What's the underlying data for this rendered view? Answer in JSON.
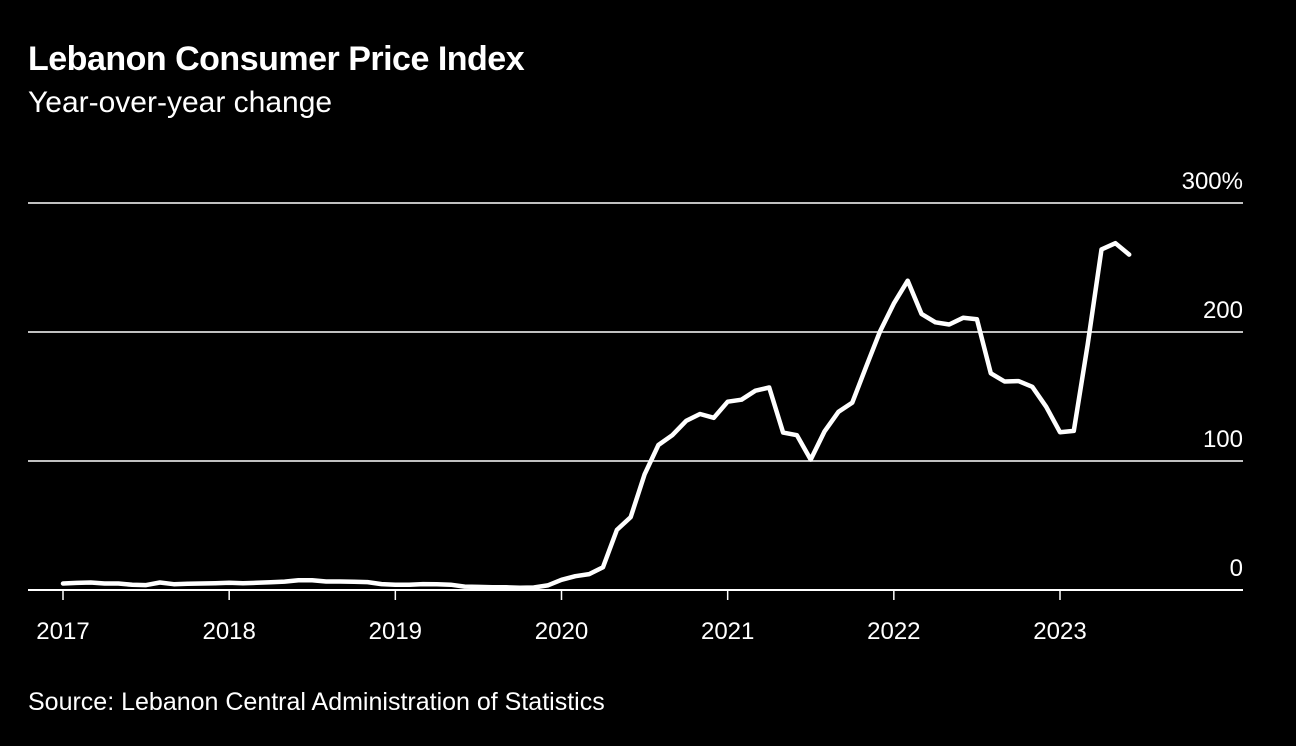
{
  "title": "Lebanon Consumer Price Index",
  "subtitle": "Year-over-year change",
  "source": "Source: Lebanon Central Administration of Statistics",
  "colors": {
    "background": "#000000",
    "foreground": "#ffffff",
    "line": "#ffffff"
  },
  "chart_data": {
    "type": "line",
    "title": "Lebanon Consumer Price Index",
    "subtitle": "Year-over-year change",
    "xlabel": "",
    "ylabel": "",
    "ylim": [
      0,
      300
    ],
    "xlim": [
      2016.8,
      2024.05
    ],
    "grid": true,
    "yticks": [
      {
        "value": 0,
        "label": "0"
      },
      {
        "value": 100,
        "label": "100"
      },
      {
        "value": 200,
        "label": "200"
      },
      {
        "value": 300,
        "label": "300%"
      }
    ],
    "xticks": [
      {
        "value": 2017,
        "label": "2017"
      },
      {
        "value": 2018,
        "label": "2018"
      },
      {
        "value": 2019,
        "label": "2019"
      },
      {
        "value": 2020,
        "label": "2020"
      },
      {
        "value": 2021,
        "label": "2021"
      },
      {
        "value": 2022,
        "label": "2022"
      },
      {
        "value": 2023,
        "label": "2023"
      }
    ],
    "series": [
      {
        "name": "CPI YoY change (%)",
        "start": 2017.0,
        "step": 0.0833333,
        "values": [
          5,
          5.5,
          5.8,
          5,
          5,
          4,
          3.8,
          5.8,
          4.5,
          4.8,
          5,
          5.3,
          5.6,
          5.3,
          5.6,
          6,
          6.5,
          7.6,
          7.6,
          6.6,
          6.6,
          6.4,
          6.1,
          4.6,
          4.1,
          4.1,
          4.6,
          4.4,
          4.1,
          2.6,
          2.4,
          2.2,
          2.1,
          1.8,
          1.9,
          3.6,
          7.9,
          10.7,
          12.3,
          17.7,
          46.6,
          56.5,
          89.7,
          112.4,
          120,
          131.1,
          136.4,
          133.5,
          146,
          147.5,
          154.5,
          157,
          122,
          120,
          101.1,
          123,
          138.1,
          145.3,
          173,
          200.4,
          222,
          239.8,
          214,
          207.5,
          205.8,
          211,
          209.9,
          168,
          161.6,
          161.9,
          157.5,
          142,
          122.3,
          123.3,
          190.4,
          264,
          268.8,
          260
        ]
      }
    ]
  }
}
